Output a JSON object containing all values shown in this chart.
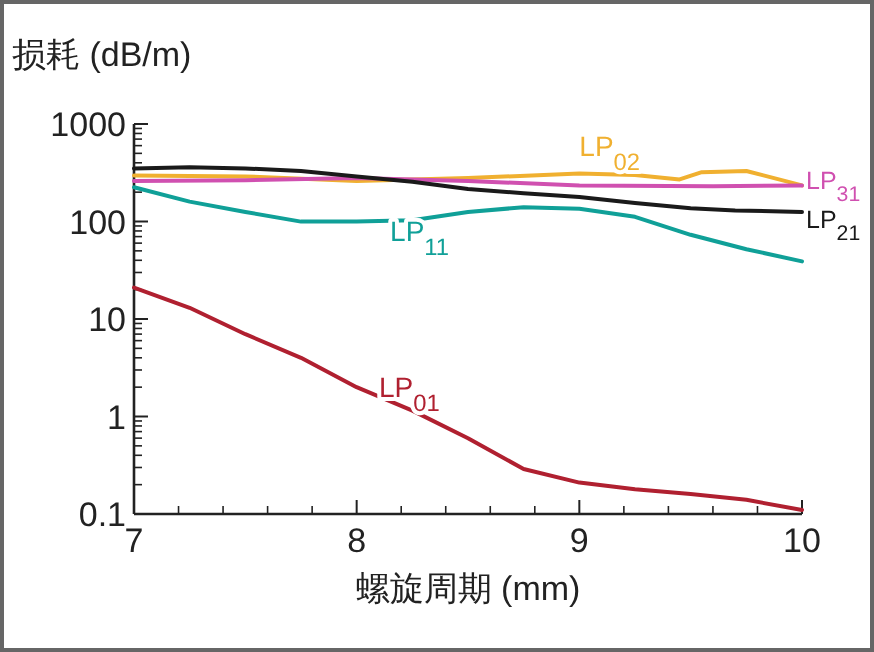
{
  "chart_data": {
    "type": "line",
    "ylabel": "损耗 (dB/m)",
    "xlabel": "螺旋周期 (mm)",
    "log": "y",
    "xlim": [
      7,
      10
    ],
    "ylim": [
      0.1,
      1000
    ],
    "xticks": [
      7,
      8,
      9,
      10
    ],
    "yticks": [
      {
        "value": 0.1,
        "label": "0.1"
      },
      1,
      10,
      100,
      1000
    ],
    "grid": false,
    "legend": false,
    "series": [
      {
        "name": "LP$_{02}$",
        "color": "#f0b030",
        "x": [
          7,
          7.5,
          8,
          8.5,
          9,
          9.25,
          9.45,
          9.55,
          9.75,
          10
        ],
        "values": [
          295,
          290,
          260,
          280,
          310,
          300,
          270,
          320,
          330,
          235
        ]
      },
      {
        "name": "LP$_{31}$",
        "color": "#d050b0",
        "x": [
          7,
          7.5,
          8,
          8.5,
          9,
          9.6,
          10
        ],
        "values": [
          260,
          265,
          280,
          260,
          235,
          230,
          235
        ]
      },
      {
        "name": "LP$_{21}$",
        "color": "#1a1a1a",
        "x": [
          7,
          7.25,
          7.5,
          7.75,
          8,
          8.25,
          8.5,
          8.75,
          9,
          9.25,
          9.5,
          9.7,
          10
        ],
        "values": [
          350,
          360,
          350,
          330,
          290,
          255,
          215,
          195,
          178,
          155,
          137,
          130,
          125
        ]
      },
      {
        "name": "LP$_{11}$",
        "color": "#10a098",
        "x": [
          7,
          7.25,
          7.5,
          7.75,
          8,
          8.25,
          8.5,
          8.75,
          9,
          9.25,
          9.5,
          9.75,
          10
        ],
        "values": [
          225,
          160,
          125,
          100,
          100,
          103,
          125,
          140,
          135,
          112,
          73,
          52,
          39
        ]
      },
      {
        "name": "LP$_{01}$",
        "color": "#b02030",
        "x": [
          7,
          7.25,
          7.5,
          7.75,
          8,
          8.25,
          8.5,
          8.75,
          9,
          9.25,
          9.5,
          9.75,
          10
        ],
        "values": [
          21,
          13,
          7,
          4,
          2.0,
          1.15,
          0.6,
          0.29,
          0.21,
          0.18,
          0.16,
          0.14,
          0.11
        ]
      }
    ]
  }
}
